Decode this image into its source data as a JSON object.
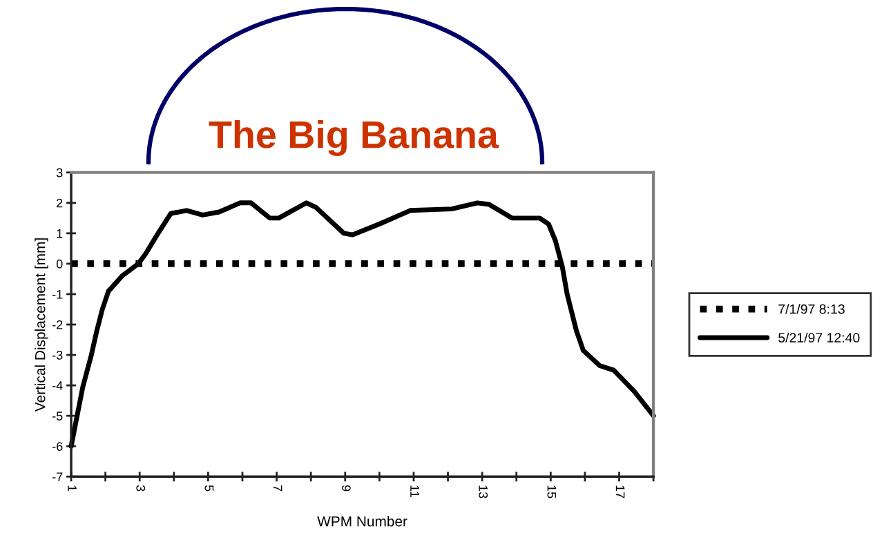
{
  "chart_data": {
    "type": "line",
    "title": "The Big Banana",
    "xlabel": "WPM Number",
    "ylabel": "Vertical Displacement [mm]",
    "xlim": [
      1,
      18
    ],
    "xticks": [
      1,
      {
        "value": 2,
        "label": null
      },
      3,
      {
        "value": 4,
        "label": null
      },
      5,
      {
        "value": 6,
        "label": null
      },
      7,
      {
        "value": 8,
        "label": null
      },
      9,
      {
        "value": 10,
        "label": null
      },
      11,
      {
        "value": 12,
        "label": null
      },
      13,
      {
        "value": 14,
        "label": null
      },
      15,
      {
        "value": 16,
        "label": null
      },
      17,
      {
        "value": 18,
        "label": null
      }
    ],
    "ylim": [
      -7,
      3
    ],
    "yticks": [
      -7,
      -6,
      -5,
      -4,
      -3,
      -2,
      -1,
      0,
      1,
      2,
      3
    ],
    "grid": false,
    "legend": "right",
    "marker": "none",
    "series": [
      {
        "name": "7/1/97 8:13",
        "color": "#000000",
        "line_style": "dotted",
        "x": [
          1,
          2,
          3,
          4,
          5,
          6,
          7,
          8,
          9,
          10,
          11,
          12,
          13,
          14,
          15,
          16,
          17,
          18
        ],
        "values": [
          0,
          0,
          0,
          0,
          0,
          0,
          0,
          0,
          0,
          0,
          0,
          0,
          0,
          0,
          0,
          0,
          0,
          0
        ]
      },
      {
        "name": "5/21/97 12:40",
        "color": "#000000",
        "line_style": "solid",
        "x": [
          1.0,
          1.34,
          1.59,
          1.75,
          1.91,
          2.09,
          2.49,
          2.96,
          3.16,
          3.51,
          3.91,
          4.37,
          4.84,
          5.32,
          5.93,
          6.25,
          6.8,
          7.06,
          7.87,
          8.15,
          8.96,
          9.22,
          9.77,
          10.09,
          10.9,
          12.11,
          12.86,
          13.2,
          13.87,
          14.68,
          14.94,
          15.14,
          15.34,
          15.48,
          15.75,
          15.95,
          16.43,
          16.84,
          17.44,
          18.0
        ],
        "values": [
          -6.0,
          -4.05,
          -3.0,
          -2.2,
          -1.5,
          -0.9,
          -0.4,
          0.0,
          0.3,
          0.95,
          1.65,
          1.75,
          1.6,
          1.7,
          2.0,
          2.0,
          1.5,
          1.5,
          2.0,
          1.85,
          1.0,
          0.95,
          1.2,
          1.35,
          1.75,
          1.8,
          2.0,
          1.95,
          1.5,
          1.5,
          1.3,
          0.75,
          -0.1,
          -1.0,
          -2.2,
          -2.85,
          -3.35,
          -3.5,
          -4.2,
          -5.0
        ]
      }
    ]
  }
}
